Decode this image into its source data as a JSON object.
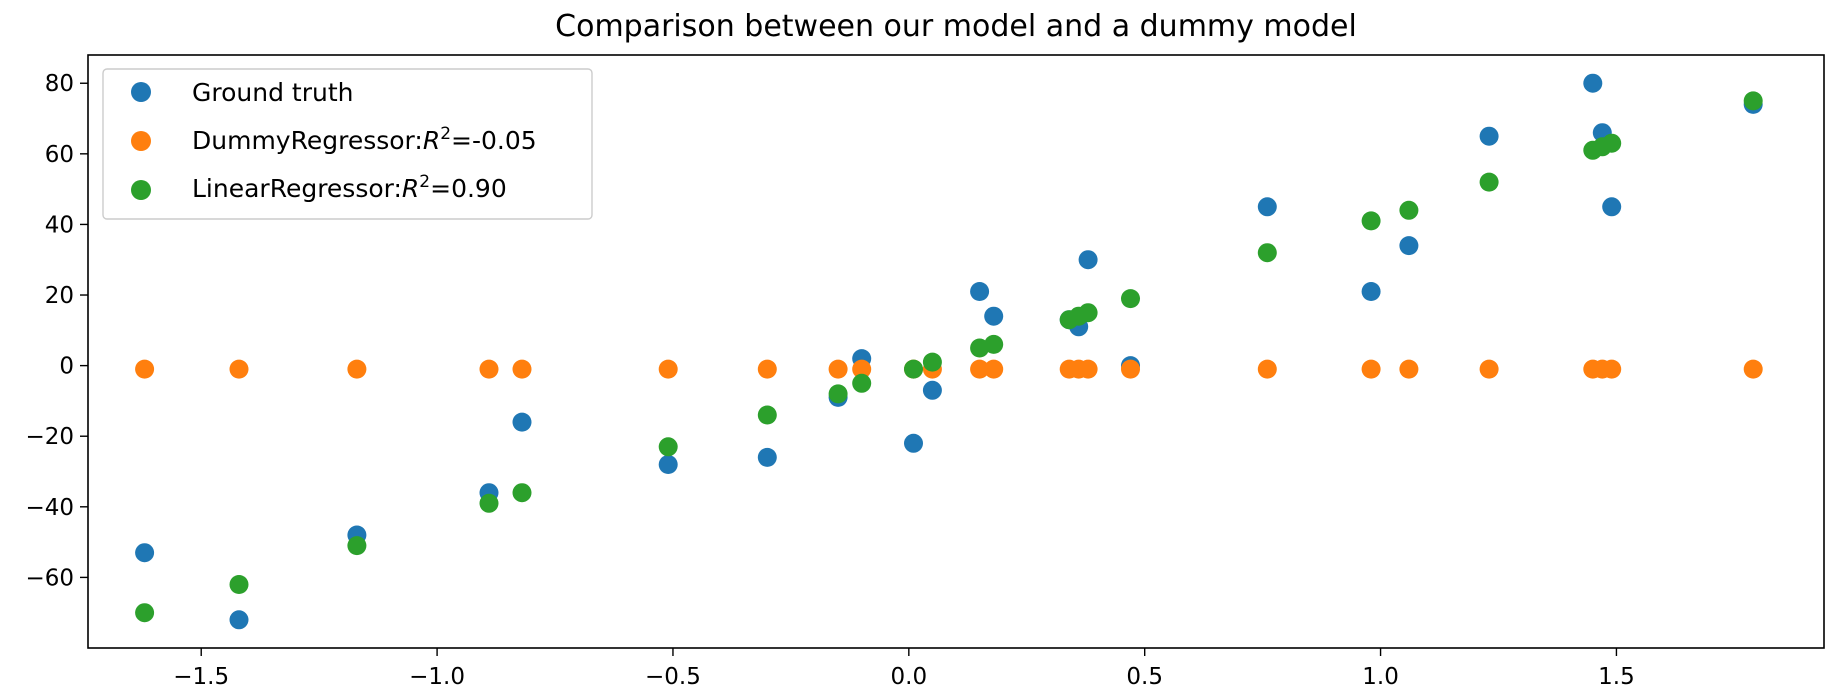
{
  "chart_data": {
    "type": "scatter",
    "title": "Comparison between our model and a dummy model",
    "xlabel": "",
    "ylabel": "",
    "xlim": [
      -1.74,
      1.94
    ],
    "ylim": [
      -80,
      88
    ],
    "xticks": [
      -1.5,
      -1.0,
      -0.5,
      0.0,
      0.5,
      1.0,
      1.5
    ],
    "xtick_labels": [
      "−1.5",
      "−1.0",
      "−0.5",
      "0.0",
      "0.5",
      "1.0",
      "1.5"
    ],
    "yticks": [
      -60,
      -40,
      -20,
      0,
      20,
      40,
      60,
      80
    ],
    "ytick_labels": [
      "−60",
      "−40",
      "−20",
      "0",
      "20",
      "40",
      "60",
      "80"
    ],
    "grid": false,
    "legend": "top-left",
    "series": [
      {
        "name": "Ground truth",
        "color": "#1f77b4",
        "x": [
          -1.62,
          -1.42,
          -1.17,
          -0.89,
          -0.82,
          -0.51,
          -0.3,
          -0.15,
          -0.1,
          0.01,
          0.05,
          0.15,
          0.18,
          0.34,
          0.36,
          0.38,
          0.47,
          0.76,
          0.98,
          1.06,
          1.23,
          1.45,
          1.47,
          1.49,
          1.79
        ],
        "y": [
          -53,
          -72,
          -48,
          -36,
          -16,
          -28,
          -26,
          -9,
          2,
          -22,
          -7,
          21,
          14,
          13,
          11,
          30,
          0,
          45,
          21,
          34,
          65,
          80,
          66,
          45,
          74
        ]
      },
      {
        "name": "DummyRegressor:R²=-0.05",
        "legend_prefix": "DummyRegressor:",
        "legend_suffix": "=-0.05",
        "color": "#ff7f0e",
        "x": [
          -1.62,
          -1.42,
          -1.17,
          -0.89,
          -0.82,
          -0.51,
          -0.3,
          -0.15,
          -0.1,
          0.01,
          0.05,
          0.15,
          0.18,
          0.34,
          0.36,
          0.38,
          0.47,
          0.76,
          0.98,
          1.06,
          1.23,
          1.45,
          1.47,
          1.49,
          1.79
        ],
        "y": [
          -1,
          -1,
          -1,
          -1,
          -1,
          -1,
          -1,
          -1,
          -1,
          -1,
          -1,
          -1,
          -1,
          -1,
          -1,
          -1,
          -1,
          -1,
          -1,
          -1,
          -1,
          -1,
          -1,
          -1,
          -1
        ]
      },
      {
        "name": "LinearRegressor:R²=0.90",
        "legend_prefix": "LinearRegressor:",
        "legend_suffix": "=0.90",
        "color": "#2ca02c",
        "x": [
          -1.62,
          -1.42,
          -1.17,
          -0.89,
          -0.82,
          -0.51,
          -0.3,
          -0.15,
          -0.1,
          0.01,
          0.05,
          0.15,
          0.18,
          0.34,
          0.36,
          0.38,
          0.47,
          0.76,
          0.98,
          1.06,
          1.23,
          1.45,
          1.47,
          1.49,
          1.79
        ],
        "y": [
          -70,
          -62,
          -51,
          -39,
          -36,
          -23,
          -14,
          -8,
          -5,
          -1,
          1,
          5,
          6,
          13,
          14,
          15,
          19,
          32,
          41,
          44,
          52,
          61,
          62,
          63,
          75
        ]
      }
    ]
  }
}
